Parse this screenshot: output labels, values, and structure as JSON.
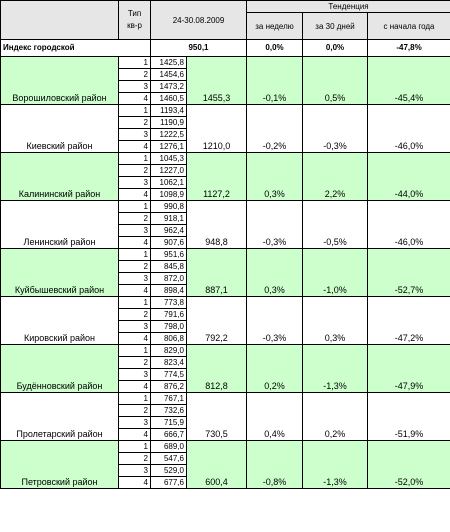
{
  "header": {
    "type_label": "Тип\nкв-р",
    "period": "24-30.08.2009",
    "trend": "Тенденция",
    "week": "за неделю",
    "days30": "за 30 дней",
    "year_start": "с начала года"
  },
  "index": {
    "label": "Индекс городской",
    "value": "950,1",
    "week": "0,0%",
    "days30": "0,0%",
    "year": "-47,8%"
  },
  "districts": [
    {
      "name": "Ворошиловский район",
      "types": [
        "1",
        "2",
        "3",
        "4"
      ],
      "sales": [
        "1425,8",
        "1454,6",
        "1473,2",
        "1460,5"
      ],
      "avg": "1455,3",
      "week": "-0,1%",
      "days30": "0,5%",
      "year": "-45,4%",
      "color": "green"
    },
    {
      "name": "Киевский район",
      "types": [
        "1",
        "2",
        "3",
        "4"
      ],
      "sales": [
        "1193,4",
        "1190,9",
        "1222,5",
        "1276,1"
      ],
      "avg": "1210,0",
      "week": "-0,2%",
      "days30": "-0,3%",
      "year": "-46,0%",
      "color": "white"
    },
    {
      "name": "Калининский район",
      "types": [
        "1",
        "2",
        "3",
        "4"
      ],
      "sales": [
        "1045,3",
        "1227,0",
        "1062,1",
        "1098,9"
      ],
      "avg": "1127,2",
      "week": "0,3%",
      "days30": "2,2%",
      "year": "-44,0%",
      "color": "green"
    },
    {
      "name": "Ленинский район",
      "types": [
        "1",
        "2",
        "3",
        "4"
      ],
      "sales": [
        "990,8",
        "918,1",
        "962,4",
        "907,6"
      ],
      "avg": "948,8",
      "week": "-0,3%",
      "days30": "-0,5%",
      "year": "-46,0%",
      "color": "white"
    },
    {
      "name": "Куйбышевский район",
      "types": [
        "1",
        "2",
        "3",
        "4"
      ],
      "sales": [
        "951,6",
        "845,8",
        "872,0",
        "898,4"
      ],
      "avg": "887,1",
      "week": "0,3%",
      "days30": "-1,0%",
      "year": "-52,7%",
      "color": "green"
    },
    {
      "name": "Кировский район",
      "types": [
        "1",
        "2",
        "3",
        "4"
      ],
      "sales": [
        "773,8",
        "791,6",
        "798,0",
        "806,8"
      ],
      "avg": "792,2",
      "week": "-0,3%",
      "days30": "0,3%",
      "year": "-47,2%",
      "color": "white"
    },
    {
      "name": "Будённовский район",
      "types": [
        "1",
        "2",
        "3",
        "4"
      ],
      "sales": [
        "829,0",
        "823,4",
        "774,5",
        "876,2"
      ],
      "avg": "812,8",
      "week": "0,2%",
      "days30": "-1,3%",
      "year": "-47,9%",
      "color": "green"
    },
    {
      "name": "Пролетарский район",
      "types": [
        "1",
        "2",
        "3",
        "4"
      ],
      "sales": [
        "767,1",
        "732,6",
        "715,9",
        "666,7"
      ],
      "avg": "730,5",
      "week": "0,4%",
      "days30": "0,2%",
      "year": "-51,9%",
      "color": "white"
    },
    {
      "name": "Петровский район",
      "types": [
        "1",
        "2",
        "3",
        "4"
      ],
      "sales": [
        "689,0",
        "547,6",
        "529,0",
        "677,6"
      ],
      "avg": "600,4",
      "week": "-0,8%",
      "days30": "-1,3%",
      "year": "-52,0%",
      "color": "green"
    }
  ]
}
